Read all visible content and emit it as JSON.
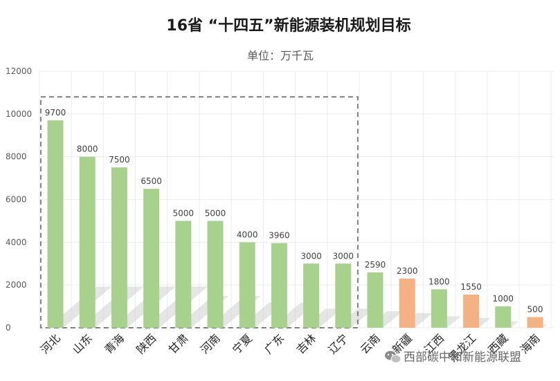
{
  "chart_data": {
    "type": "bar",
    "title": "16省 “十四五”新能源装机规划目标",
    "subtitle": "单位：万千瓦",
    "xlabel": "",
    "ylabel": "",
    "ylim": [
      0,
      12000
    ],
    "yticks": [
      0,
      2000,
      4000,
      6000,
      8000,
      10000,
      12000
    ],
    "grid": true,
    "legend": "none",
    "categories": [
      "河北",
      "山东",
      "青海",
      "陕西",
      "甘肃",
      "河南",
      "宁夏",
      "广东",
      "吉林",
      "辽宁",
      "云南",
      "新疆",
      "江西",
      "黑龙江",
      "西藏",
      "海南"
    ],
    "values": [
      9700,
      8000,
      7500,
      6500,
      5000,
      5000,
      4000,
      3960,
      3000,
      3000,
      2590,
      2300,
      1800,
      1550,
      1000,
      500
    ],
    "data_labels": [
      "9700",
      "8000",
      "7500",
      "6500",
      "5000",
      "5000",
      "4000",
      "3960",
      "3000",
      "3000",
      "2590",
      "2300",
      "1800",
      "1550",
      "1000",
      "500"
    ],
    "bar_colors": [
      "#a9d18e",
      "#a9d18e",
      "#a9d18e",
      "#a9d18e",
      "#a9d18e",
      "#a9d18e",
      "#a9d18e",
      "#a9d18e",
      "#a9d18e",
      "#a9d18e",
      "#a9d18e",
      "#f4b183",
      "#a9d18e",
      "#f4b183",
      "#a9d18e",
      "#f4b183"
    ],
    "highlight_box_categories": [
      "河北",
      "辽宁"
    ]
  },
  "colors": {
    "green_bar": "#a9d18e",
    "orange_bar": "#f4b183",
    "box_stroke": "#7f7f7f"
  },
  "watermark": {
    "text": "西部碳中和新能源联盟",
    "icon": "wechat-icon"
  }
}
